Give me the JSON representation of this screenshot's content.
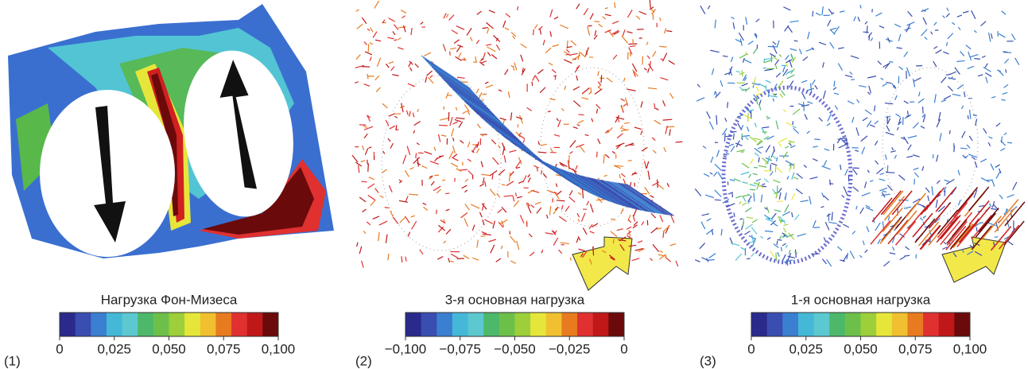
{
  "panels": [
    {
      "label": "(1)",
      "title": "Нагрузка Фон-Мизеса",
      "ticks": [
        "0",
        "0,025",
        "0,050",
        "0,075",
        "0,100"
      ]
    },
    {
      "label": "(2)",
      "title": "3-я основная нагрузка",
      "ticks": [
        "−0,100",
        "−0,075",
        "−0,050",
        "−0,025",
        "0"
      ]
    },
    {
      "label": "(3)",
      "title": "1-я основная нагрузка",
      "ticks": [
        "0",
        "0,025",
        "0,050",
        "0,075",
        "0,100"
      ]
    }
  ]
}
